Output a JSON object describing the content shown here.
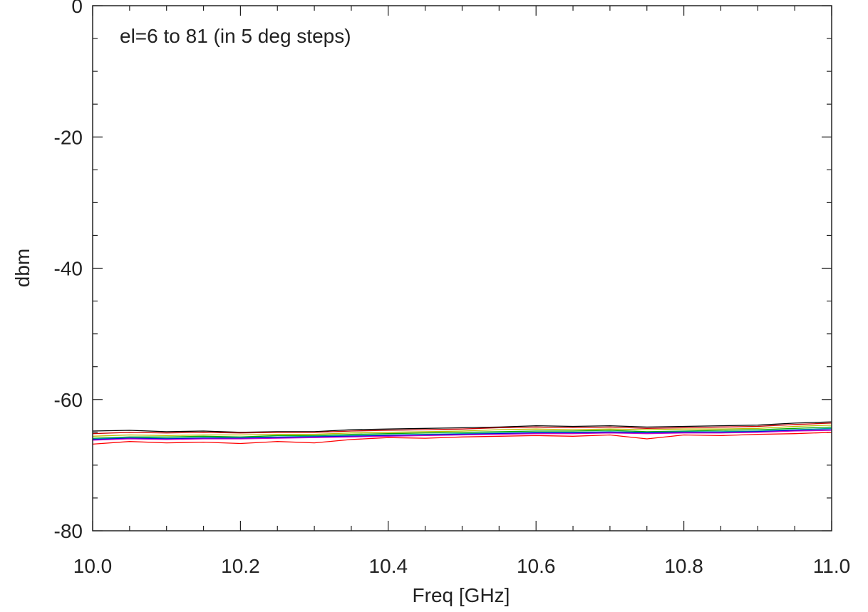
{
  "chart_data": {
    "type": "line",
    "annotation": "el=6 to 81 (in 5 deg steps)",
    "xlabel": "Freq [GHz]",
    "ylabel": "dbm",
    "xlim": [
      10.0,
      11.0
    ],
    "ylim": [
      -80,
      0
    ],
    "x_ticks": [
      10.0,
      10.2,
      10.4,
      10.6,
      10.8,
      11.0
    ],
    "x_tick_labels": [
      "10.0",
      "10.2",
      "10.4",
      "10.6",
      "10.8",
      "11.0"
    ],
    "x_minor_step": 0.05,
    "y_ticks": [
      0,
      -20,
      -40,
      -60,
      -80
    ],
    "y_tick_labels": [
      "0",
      "-20",
      "-40",
      "-60",
      "-80"
    ],
    "y_minor_step": 5,
    "grid": false,
    "x": [
      10.0,
      10.05,
      10.1,
      10.15,
      10.2,
      10.25,
      10.3,
      10.35,
      10.4,
      10.45,
      10.5,
      10.55,
      10.6,
      10.65,
      10.7,
      10.75,
      10.8,
      10.85,
      10.9,
      10.95,
      11.0
    ],
    "series": [
      {
        "color": "#000000",
        "values": [
          -64.8,
          -64.7,
          -64.9,
          -64.8,
          -65.0,
          -64.9,
          -64.9,
          -64.6,
          -64.5,
          -64.4,
          -64.3,
          -64.2,
          -64.0,
          -64.1,
          -64.0,
          -64.2,
          -64.1,
          -64.0,
          -63.9,
          -63.6,
          -63.4
        ]
      },
      {
        "color": "#cc0000",
        "values": [
          -65.2,
          -65.0,
          -65.1,
          -65.0,
          -65.1,
          -65.0,
          -65.0,
          -64.8,
          -64.7,
          -64.6,
          -64.5,
          -64.3,
          -64.2,
          -64.3,
          -64.2,
          -64.4,
          -64.3,
          -64.2,
          -64.1,
          -63.8,
          -63.6
        ]
      },
      {
        "color": "#bbbb00",
        "values": [
          -65.6,
          -65.4,
          -65.5,
          -65.4,
          -65.4,
          -65.3,
          -65.3,
          -65.1,
          -65.0,
          -64.9,
          -64.8,
          -64.6,
          -64.5,
          -64.6,
          -64.5,
          -64.6,
          -64.5,
          -64.5,
          -64.4,
          -64.1,
          -63.9
        ]
      },
      {
        "color": "#00aa00",
        "values": [
          -65.9,
          -65.7,
          -65.7,
          -65.6,
          -65.7,
          -65.5,
          -65.5,
          -65.3,
          -65.2,
          -65.1,
          -65.0,
          -64.9,
          -64.8,
          -64.8,
          -64.7,
          -64.9,
          -64.8,
          -64.7,
          -64.6,
          -64.4,
          -64.2
        ]
      },
      {
        "color": "#00a0a0",
        "values": [
          -66.0,
          -65.8,
          -65.9,
          -65.8,
          -65.8,
          -65.7,
          -65.6,
          -65.5,
          -65.4,
          -65.3,
          -65.2,
          -65.1,
          -65.0,
          -65.0,
          -64.9,
          -65.0,
          -64.9,
          -64.9,
          -64.8,
          -64.6,
          -64.4
        ]
      },
      {
        "color": "#0000dd",
        "values": [
          -66.1,
          -65.9,
          -66.0,
          -65.9,
          -65.9,
          -65.8,
          -65.7,
          -65.6,
          -65.5,
          -65.4,
          -65.3,
          -65.2,
          -65.1,
          -65.1,
          -65.0,
          -65.1,
          -65.0,
          -65.0,
          -64.9,
          -64.7,
          -64.6
        ]
      },
      {
        "color": "#cc00cc",
        "values": [
          -66.2,
          -66.0,
          -66.1,
          -66.0,
          -66.0,
          -65.9,
          -65.8,
          -65.7,
          -65.6,
          -65.5,
          -65.4,
          -65.3,
          -65.2,
          -65.2,
          -65.1,
          -65.2,
          -65.1,
          -65.1,
          -65.0,
          -64.8,
          -64.7
        ]
      },
      {
        "color": "#ff0000",
        "values": [
          -66.8,
          -66.4,
          -66.6,
          -66.5,
          -66.7,
          -66.4,
          -66.6,
          -66.1,
          -65.8,
          -65.9,
          -65.7,
          -65.6,
          -65.5,
          -65.6,
          -65.4,
          -66.0,
          -65.4,
          -65.5,
          -65.3,
          -65.2,
          -65.0
        ]
      }
    ]
  }
}
